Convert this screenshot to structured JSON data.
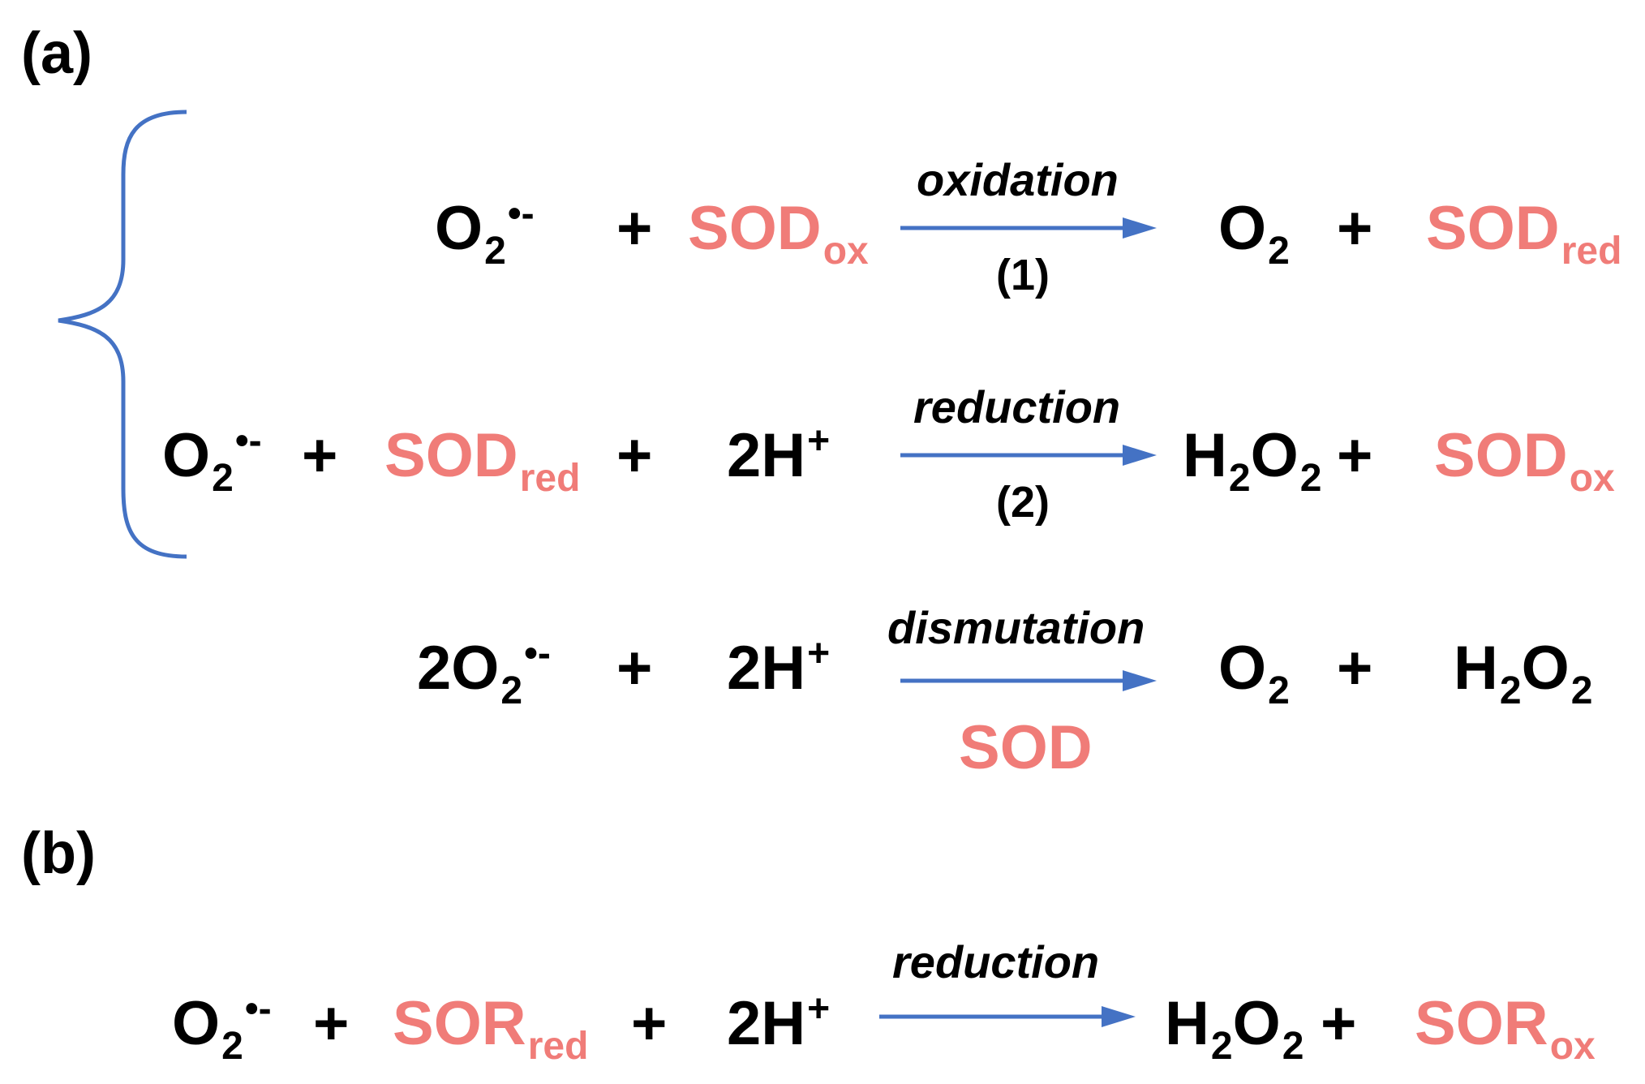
{
  "panel_a": {
    "label": "(a)"
  },
  "panel_b": {
    "label": "(b)"
  },
  "colors": {
    "enzyme": "#f07c78",
    "arrow": "#4472c4",
    "text": "#000000"
  },
  "reaction1": {
    "superoxide": {
      "base": "O",
      "sub": "2",
      "sup": "•-"
    },
    "plus1": "+",
    "enzyme": {
      "base": "SOD",
      "sub": "ox"
    },
    "arrow_top": "oxidation",
    "arrow_bottom": "(1)",
    "product1": {
      "base": "O",
      "sub": "2"
    },
    "plus2": "+",
    "product2": {
      "base": "SOD",
      "sub": "red"
    }
  },
  "reaction2": {
    "superoxide": {
      "base": "O",
      "sub": "2",
      "sup": "•-"
    },
    "plus1": "+",
    "enzyme": {
      "base": "SOD",
      "sub": "red"
    },
    "plus2": "+",
    "proton": {
      "base": "2H",
      "sup": "+"
    },
    "arrow_top": "reduction",
    "arrow_bottom": "(2)",
    "product1": {
      "h": "H",
      "hsub": "2",
      "o": "O",
      "osub": "2"
    },
    "plus3": "+",
    "product2": {
      "base": "SOD",
      "sub": "ox"
    }
  },
  "reaction3": {
    "superoxide": {
      "base": "2O",
      "sub": "2",
      "sup": "•-"
    },
    "plus1": "+",
    "proton": {
      "base": "2H",
      "sup": "+"
    },
    "arrow_top": "dismutation",
    "arrow_bottom": "SOD",
    "product1": {
      "base": "O",
      "sub": "2"
    },
    "plus2": "+",
    "product2": {
      "h": "H",
      "hsub": "2",
      "o": "O",
      "osub": "2"
    }
  },
  "reaction4": {
    "superoxide": {
      "base": "O",
      "sub": "2",
      "sup": "•-"
    },
    "plus1": "+",
    "enzyme": {
      "base": "SOR",
      "sub": "red"
    },
    "plus2": "+",
    "proton": {
      "base": "2H",
      "sup": "+"
    },
    "arrow_top": "reduction",
    "product1": {
      "h": "H",
      "hsub": "2",
      "o": "O",
      "osub": "2"
    },
    "plus3": "+",
    "product2": {
      "base": "SOR",
      "sub": "ox"
    }
  }
}
